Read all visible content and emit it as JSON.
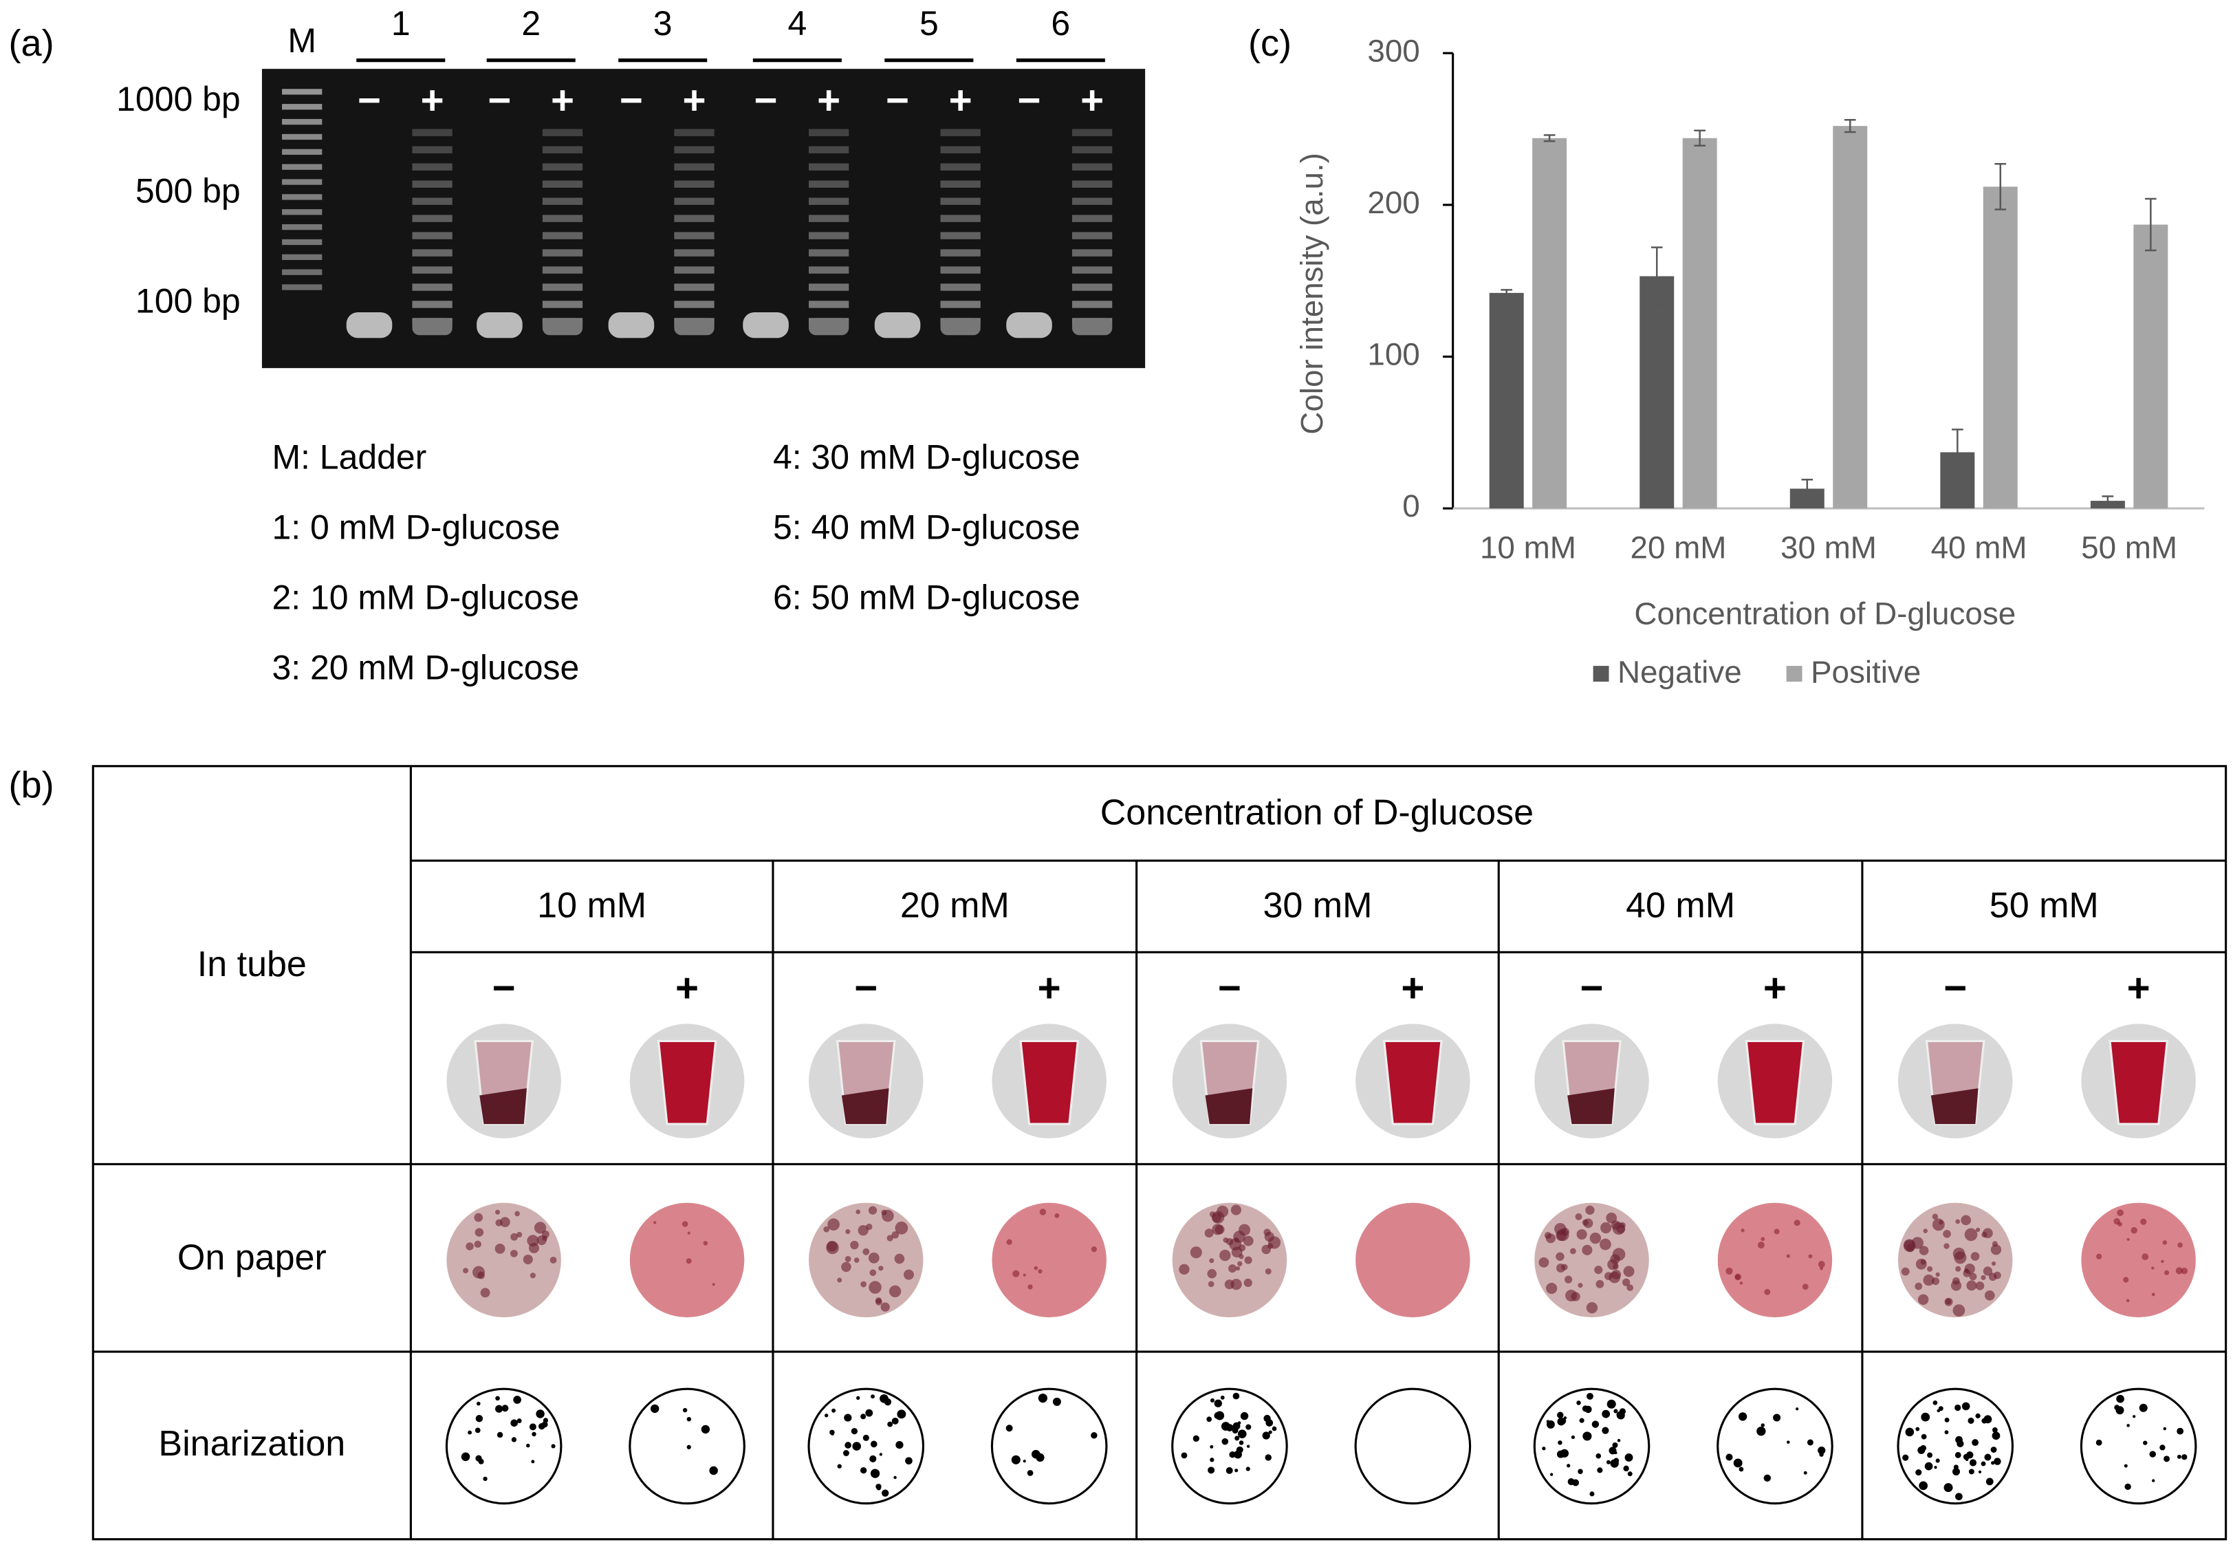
{
  "panel_a": {
    "label": "(a)",
    "lanes": [
      "M",
      "1",
      "2",
      "3",
      "4",
      "5",
      "6"
    ],
    "signs": [
      "−",
      "+"
    ],
    "markers": [
      "1000 bp",
      "500 bp",
      "100 bp"
    ],
    "legend": [
      "M: Ladder",
      "1: 0 mM D-glucose",
      "2: 10 mM D-glucose",
      "3: 20 mM D-glucose",
      "4: 30 mM D-glucose",
      "5: 40 mM D-glucose",
      "6: 50 mM D-glucose"
    ]
  },
  "panel_b": {
    "label": "(b)",
    "header": "Concentration of D-glucose",
    "columns": [
      "10 mM",
      "20 mM",
      "30 mM",
      "40 mM",
      "50 mM"
    ],
    "signs": [
      "−",
      "+"
    ],
    "rows": [
      "In tube",
      "On paper",
      "Binarization"
    ]
  },
  "chart_data": {
    "type": "bar",
    "label": "(c)",
    "ylabel": "Color intensity (a.u.)",
    "xlabel": "Concentration of D-glucose",
    "categories": [
      "10 mM",
      "20 mM",
      "30 mM",
      "40 mM",
      "50 mM"
    ],
    "series": [
      {
        "name": "Negative",
        "color": "#595959",
        "values": [
          142,
          153,
          13,
          37,
          5
        ],
        "errors": [
          2,
          19,
          6,
          15,
          3
        ]
      },
      {
        "name": "Positive",
        "color": "#a6a6a6",
        "values": [
          244,
          244,
          252,
          212,
          187
        ],
        "errors": [
          2,
          5,
          4,
          15,
          17
        ]
      }
    ],
    "ylim": [
      0,
      300
    ],
    "yticks": [
      0,
      100,
      200,
      300
    ]
  }
}
